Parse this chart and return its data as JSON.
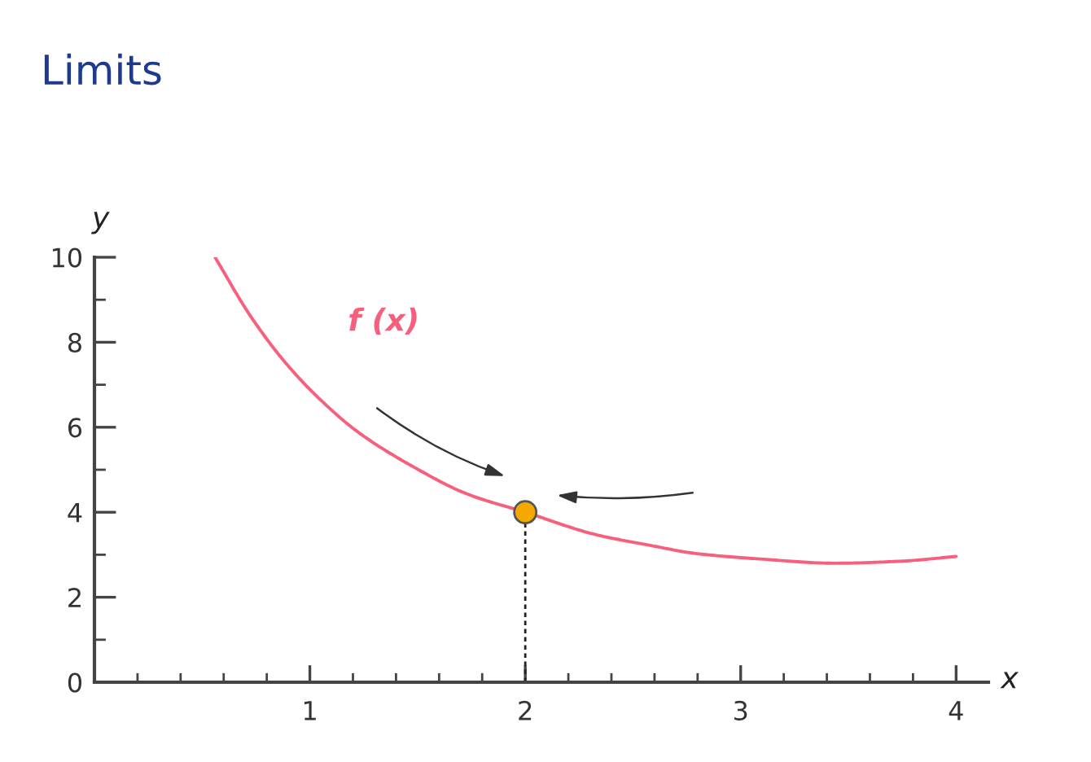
{
  "chart_data": {
    "type": "line",
    "title": "Limits",
    "xlabel": "x",
    "ylabel": "y",
    "xlim": [
      0,
      4.15
    ],
    "ylim": [
      0,
      10
    ],
    "xticks": [
      {
        "value": 0.2,
        "label": null
      },
      {
        "value": 0.4,
        "label": null
      },
      {
        "value": 0.6,
        "label": null
      },
      {
        "value": 0.8,
        "label": null
      },
      1,
      {
        "value": 1.2,
        "label": null
      },
      {
        "value": 1.4,
        "label": null
      },
      {
        "value": 1.6,
        "label": null
      },
      {
        "value": 1.8,
        "label": null
      },
      2,
      {
        "value": 2.2,
        "label": null
      },
      {
        "value": 2.4,
        "label": null
      },
      {
        "value": 2.6,
        "label": null
      },
      {
        "value": 2.8,
        "label": null
      },
      3,
      {
        "value": 3.2,
        "label": null
      },
      {
        "value": 3.4,
        "label": null
      },
      {
        "value": 3.6,
        "label": null
      },
      {
        "value": 3.8,
        "label": null
      },
      4
    ],
    "yticks": [
      0,
      {
        "value": 1,
        "label": null
      },
      2,
      {
        "value": 3,
        "label": null
      },
      4,
      {
        "value": 5,
        "label": null
      },
      6,
      {
        "value": 7,
        "label": null
      },
      8,
      {
        "value": 9,
        "label": null
      },
      10
    ],
    "series": [
      {
        "name": "f (x)",
        "color": "#f7607c",
        "x": [
          0.56,
          0.72,
          0.87,
          1.02,
          1.22,
          1.48,
          1.73,
          2.0,
          2.33,
          2.58,
          2.79,
          3.09,
          3.44,
          3.75,
          4.0
        ],
        "values": [
          10,
          8.65,
          7.62,
          6.79,
          5.9,
          5.07,
          4.43,
          4.0,
          3.47,
          3.22,
          3.03,
          2.9,
          2.8,
          2.85,
          2.96
        ]
      },
      {
        "type": "line",
        "color": "#222222",
        "line_style": "dotted",
        "x": [
          2,
          2
        ],
        "values": [
          0,
          4
        ]
      },
      {
        "type": "scatter",
        "color": "#f5a800",
        "marker": "circle",
        "x": [
          2
        ],
        "values": [
          4
        ]
      }
    ]
  }
}
